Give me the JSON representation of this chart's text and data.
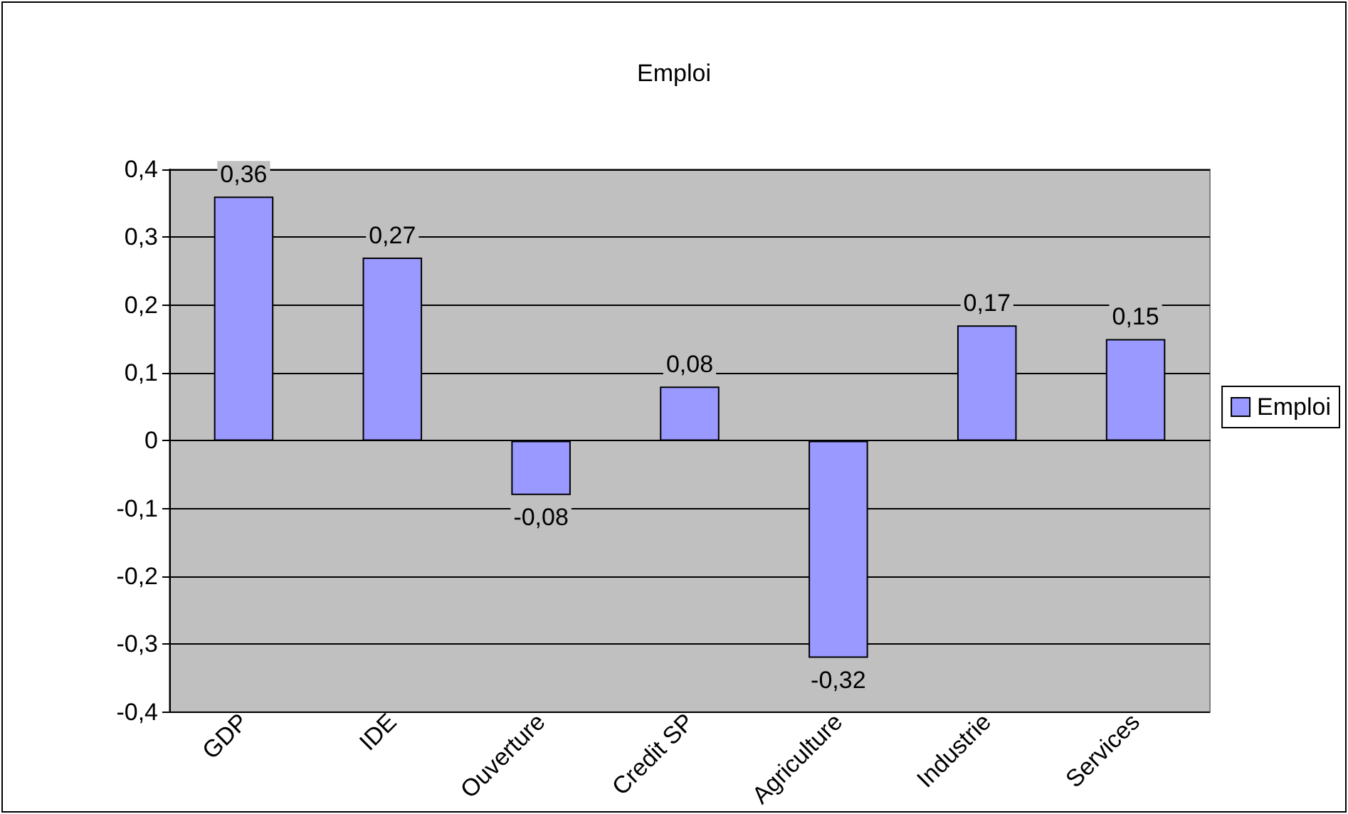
{
  "chart_data": {
    "type": "bar",
    "title": "Emploi",
    "categories": [
      "GDP",
      "IDE",
      "Ouverture",
      "Credit SP",
      "Agriculture",
      "Industrie",
      "Services"
    ],
    "series": [
      {
        "name": "Emploi",
        "color": "#9999ff",
        "values": [
          0.36,
          0.27,
          -0.08,
          0.08,
          -0.32,
          0.17,
          0.15
        ],
        "value_labels": [
          "0,36",
          "0,27",
          "-0,08",
          "0,08",
          "-0,32",
          "0,17",
          "0,15"
        ]
      }
    ],
    "ylim": [
      -0.4,
      0.4
    ],
    "yticks": [
      {
        "value": -0.4,
        "label": "-0,4"
      },
      {
        "value": -0.3,
        "label": "-0,3"
      },
      {
        "value": -0.2,
        "label": "-0,2"
      },
      {
        "value": -0.1,
        "label": "-0,1"
      },
      {
        "value": 0,
        "label": "0"
      },
      {
        "value": 0.1,
        "label": "0,1"
      },
      {
        "value": 0.2,
        "label": "0,2"
      },
      {
        "value": 0.3,
        "label": "0,3"
      },
      {
        "value": 0.4,
        "label": "0,4"
      }
    ],
    "grid": "y",
    "legend": "right"
  }
}
